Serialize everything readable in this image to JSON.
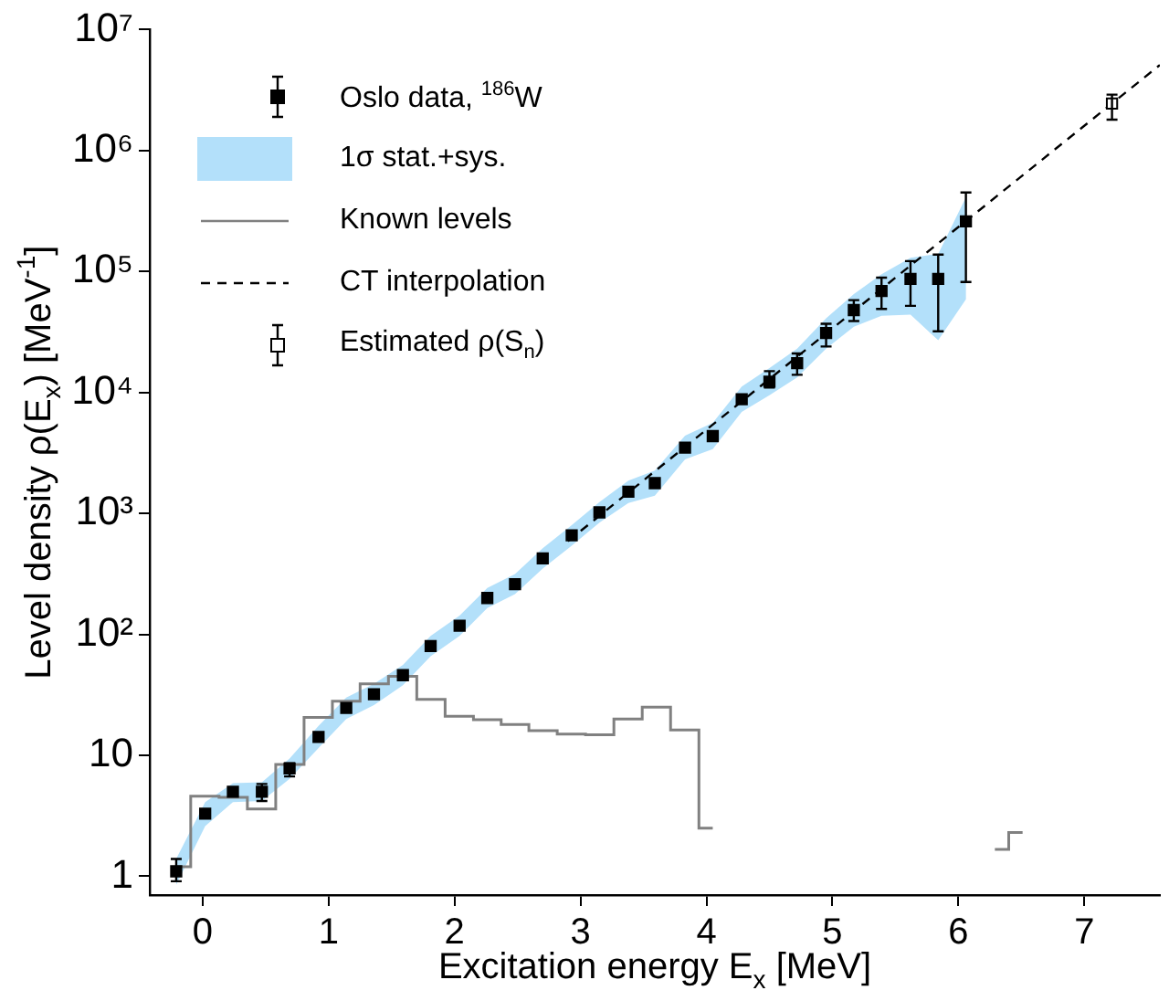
{
  "chart_data": {
    "type": "scatter",
    "xlabel": "Excitation energy E$_{x}$ [MeV]",
    "ylabel": "Level density ρ(E$_{x}$) [MeV$^{-1}$]",
    "xlim": [
      -0.42,
      7.6
    ],
    "ylim": [
      0.7,
      10000000
    ],
    "xticks": [
      0,
      1,
      2,
      3,
      4,
      5,
      6,
      7
    ],
    "yticks": [
      1,
      10,
      {
        "value": 100,
        "label": "10²"
      },
      {
        "value": 1000,
        "label": "10³"
      },
      {
        "value": 10000,
        "label": "10⁴"
      },
      {
        "value": 100000,
        "label": "10⁵"
      },
      {
        "value": 1000000,
        "label": "10⁶"
      },
      {
        "value": 10000000,
        "label": "10⁷"
      }
    ],
    "log": "y",
    "legend": "top left",
    "annotations": [
      "1σ stat.+sys."
    ],
    "series": [
      {
        "name": "Oslo data, $^{186}$W",
        "type": "scatter",
        "marker": "square",
        "color": "#000000",
        "x": [
          -0.21,
          0.02,
          0.24,
          0.47,
          0.69,
          0.92,
          1.14,
          1.36,
          1.59,
          1.81,
          2.04,
          2.26,
          2.48,
          2.7,
          2.93,
          3.15,
          3.38,
          3.59,
          3.83,
          4.05,
          4.28,
          4.5,
          4.72,
          4.95,
          5.17,
          5.39,
          5.62,
          5.84,
          6.06
        ],
        "values": [
          1.1,
          3.3,
          5.0,
          5.0,
          7.8,
          14.2,
          24.7,
          32,
          46,
          80,
          118,
          200,
          260,
          425,
          660,
          1020,
          1510,
          1780,
          3500,
          4360,
          8800,
          12300,
          17500,
          31000,
          48000,
          69000,
          87000,
          87000,
          260000
        ],
        "errors": [
          [
            0.91,
            1.39
          ],
          null,
          null,
          [
            4.2,
            5.8
          ],
          [
            6.7,
            8.6
          ],
          null,
          null,
          null,
          null,
          null,
          null,
          null,
          null,
          null,
          null,
          null,
          null,
          null,
          null,
          null,
          null,
          [
            11000,
            15000
          ],
          [
            14000,
            21000
          ],
          [
            24000,
            37000
          ],
          [
            39000,
            58000
          ],
          [
            49000,
            89000
          ],
          [
            52000,
            122000
          ],
          [
            32000,
            138000
          ],
          [
            82000,
            450000
          ]
        ],
        "lower": [
          0.85,
          2.6,
          4.1,
          4.2,
          6.4,
          11.5,
          20,
          26,
          38,
          66,
          97,
          165,
          215,
          350,
          540,
          840,
          1220,
          1400,
          2800,
          3400,
          6900,
          9500,
          13300,
          23000,
          35000,
          43000,
          44000,
          27000,
          59000
        ],
        "upper": [
          1.4,
          4.1,
          5.9,
          6.0,
          9.4,
          17.5,
          30,
          39,
          56,
          97,
          143,
          242,
          315,
          515,
          800,
          1240,
          1870,
          2260,
          4400,
          5600,
          11200,
          15900,
          23000,
          41000,
          65000,
          95000,
          130000,
          140000,
          410000
        ]
      },
      {
        "name": "Known levels",
        "type": "step",
        "color": "#808080",
        "x": [
          -0.21,
          0.02,
          0.24,
          0.47,
          0.69,
          0.92,
          1.14,
          1.36,
          1.59,
          1.81,
          2.04,
          2.26,
          2.48,
          2.7,
          2.93,
          3.15,
          3.38,
          3.6,
          3.83,
          4.05,
          4.28,
          4.5,
          4.72,
          4.95,
          5.17,
          5.39,
          5.62,
          5.84,
          6.06,
          6.29,
          6.51
        ],
        "values": [
          1.2,
          4.6,
          4.5,
          3.6,
          8.4,
          20.6,
          28,
          39,
          45,
          29,
          21,
          19.7,
          18,
          16,
          15,
          14.8,
          20,
          25,
          16.2,
          2.5,
          null,
          null,
          null,
          null,
          null,
          null,
          null,
          null,
          null,
          1.67,
          2.3
        ]
      },
      {
        "name": "CT interpolation",
        "type": "line",
        "marker": "none",
        "line_style": "dashed",
        "color": "#000000",
        "x": [
          2.9,
          7.6
        ],
        "values": [
          590,
          5100000
        ]
      },
      {
        "name": "Estimated ρ(S$_{n}$)",
        "type": "scatter",
        "marker": "square_open",
        "color": "#000000",
        "x": [
          7.22
        ],
        "values": [
          2450000
        ],
        "errors": [
          [
            1800000,
            2900000
          ]
        ]
      }
    ]
  }
}
